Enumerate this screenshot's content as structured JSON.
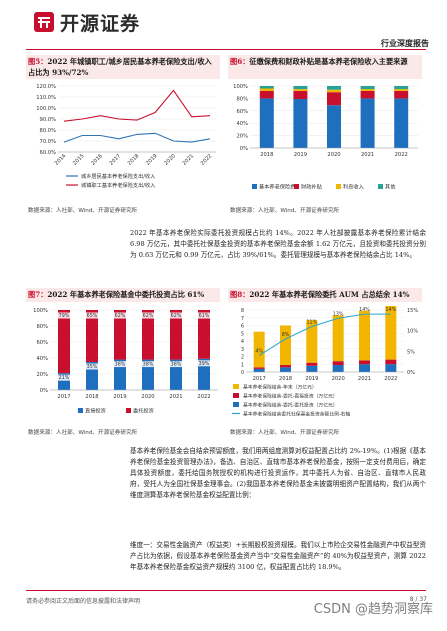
{
  "header": {
    "brand": "开源证券",
    "report_type": "行业深度报告"
  },
  "fig5": {
    "label": "图5：",
    "title": "2022 年城镇职工/城乡居民基本养老保险支出/收入占比为 93%/72%",
    "source": "数据来源：人社部、Wind、开源证券研究所",
    "chart_data": {
      "type": "line",
      "categories": [
        "2014",
        "2015",
        "2016",
        "2017",
        "2018",
        "2019",
        "2020",
        "2021",
        "2022"
      ],
      "yticks": [
        "60.0%",
        "70.0%",
        "80.0%",
        "90.0%",
        "100.0%",
        "110.0%",
        "120.0%"
      ],
      "ylim": [
        60,
        120
      ],
      "series": [
        {
          "name": "城乡居民基本养老保险支出/收入",
          "color": "#2e75b6",
          "values": [
            69,
            75,
            75,
            72,
            76,
            77,
            70,
            69,
            72
          ]
        },
        {
          "name": "城镇职工基本养老保险支出/收入",
          "color": "#c8102e",
          "values": [
            88,
            90,
            93,
            90,
            89,
            96,
            116,
            92,
            93
          ]
        }
      ]
    }
  },
  "fig6": {
    "label": "图6：",
    "title": "征缴保费和财政补贴是基本养老保险收入主要来源",
    "source": "数据来源：人社部、Wind、开源证券研究所",
    "chart_data": {
      "type": "bar",
      "categories": [
        "2018",
        "2019",
        "2020",
        "2021",
        "2022"
      ],
      "yticks": [
        "0%",
        "20%",
        "40%",
        "60%",
        "80%",
        "100%"
      ],
      "ylim": [
        0,
        100
      ],
      "series": [
        {
          "name": "基本养老保险费",
          "color": "#1f6fbf",
          "values": [
            80,
            79,
            69,
            80,
            80
          ]
        },
        {
          "name": "财政补贴",
          "color": "#c8102e",
          "values": [
            12,
            13,
            21,
            12,
            12
          ]
        },
        {
          "name": "利息收入",
          "color": "#f2b600",
          "values": [
            4,
            3,
            4,
            3,
            3
          ]
        },
        {
          "name": "其他",
          "color": "#2aa198",
          "values": [
            4,
            5,
            6,
            5,
            5
          ]
        }
      ]
    }
  },
  "para1": "2022 年基本养老保险实际委托投资规模占比约 14%。2022 年人社部披露基本养老保险累计结余 6.98 万亿元，其中委托社保基金投资的基本养老保险基金余额 1.62 万亿元，且投资和委托投资分别为 0.63 万亿元和 0.99 万亿元，占比 39%/61%。委托管理规模与基本养老保险结余占比 14%。",
  "fig7": {
    "label": "图7：",
    "title": "2022 年基本养老保险基金中委托投资占比 61%",
    "source": "数据来源：人社部、Wind、开源证券研究所",
    "chart_data": {
      "type": "bar",
      "categories": [
        "2017",
        "2018",
        "2019",
        "2020",
        "2021",
        "2022"
      ],
      "yticks": [
        "0%",
        "20%",
        "40%",
        "60%",
        "80%",
        "100%"
      ],
      "ylim": [
        0,
        100
      ],
      "series": [
        {
          "name": "直接投资",
          "color": "#1f6fbf",
          "values": [
            21,
            35,
            38,
            38,
            38,
            39
          ],
          "labels": [
            "21%",
            "35%",
            "38%",
            "38%",
            "38%",
            "39%"
          ]
        },
        {
          "name": "委托投资",
          "color": "#c8102e",
          "values": [
            79,
            65,
            62,
            62,
            62,
            61
          ],
          "labels": [
            "79%",
            "65%",
            "62%",
            "62%",
            "62%",
            "61%"
          ]
        }
      ]
    }
  },
  "fig8": {
    "label": "图8：",
    "title": "2022 年基本养老保险委托 AUM 占总结余 14%",
    "source": "数据来源：人社部、Wind、开源证券研究所",
    "chart_data": {
      "type": "bar",
      "categories": [
        "2017",
        "2018",
        "2019",
        "2020",
        "2021",
        "2022"
      ],
      "ylim_left": [
        0,
        8
      ],
      "ylim_right": [
        0,
        15
      ],
      "yticks_left": [
        "0",
        "1",
        "2",
        "3",
        "4",
        "5",
        "6",
        "7",
        "8"
      ],
      "yticks_right": [
        "0%",
        "5%",
        "10%",
        "15%"
      ],
      "series": [
        {
          "name": "基本养老保险结余-年末（万亿元）",
          "color": "#f2b600",
          "values": [
            4.6,
            5.1,
            5.5,
            5.9,
            6.4,
            7.0
          ]
        },
        {
          "name": "基本养老保险结余-委托-直接投资（万亿元）",
          "color": "#c8102e",
          "values": [
            0.2,
            0.3,
            0.4,
            0.5,
            0.5,
            0.6
          ]
        },
        {
          "name": "基本养老保险结余-委托-委托投资（万亿元）",
          "color": "#1f6fbf",
          "values": [
            0.4,
            0.6,
            0.8,
            0.9,
            1.0,
            1.0
          ]
        },
        {
          "name": "基本养老保险结余委托社保基金投资余额比例-右轴",
          "color": "#2aa6c9",
          "values": [
            4,
            8,
            11,
            13,
            14,
            14
          ],
          "labels": [
            "4%",
            "8%",
            "11%",
            "13%",
            "14%",
            "14%"
          ]
        }
      ]
    }
  },
  "para2": "基本养老保险基金会自结余预留额度，我们用两组度测算对权益配置占比约 2%-19%。(1)根据《基本养老保险基金投资管理办法》，备选、自治区、直辖市基本养老保险基金，按照一定支付费用后，确定具体投资额度，委托给国务院授权的机构进行投资运作，其中委托人为省、自治区、直辖市人民政府，受托人为全国社保基金理事会。(2)我国基本养老保险基金未披露明细资产配置结构，我们从两个维度测算基本养老保险基金权益配置比例：",
  "para3": "维度一：交易性金融资产（权益类）+长期股权投资规模。我们以上市险企交易性金融资产中权益型资产占比为依据，假设基本养老保险基金资产当中“交易性金融资产”的 40%为权益型资产，测算 2022 年基本养老保险基金权益资产规模约 3100 亿，权益配置占比约 18.9%。",
  "footer": {
    "disclaimer": "请务必参阅正文后面的信息披露和法律声明",
    "page": "8 / 37",
    "watermark": "CSDN @趋势洞察库"
  }
}
